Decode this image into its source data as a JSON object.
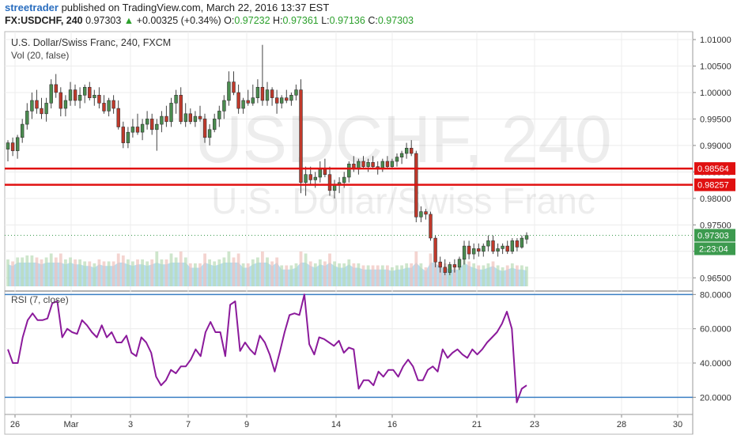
{
  "header": {
    "author": "streetrader",
    "published_text": "published on TradingView.com, March 22, 2016 13:37 EST",
    "symbol": "FX:USDCHF, 240",
    "last": "0.97303",
    "change_arrow": "▲",
    "change": "+0.00325 (+0.34%)",
    "o_label": "O:",
    "o_value": "0.97232",
    "h_label": "H:",
    "h_value": "0.97361",
    "l_label": "L:",
    "l_value": "0.97136",
    "c_label": "C:",
    "c_value": "0.97303"
  },
  "watermark": {
    "symbol": "USDCHF, 240",
    "name": "U.S. Dollar/Swiss Franc"
  },
  "colors": {
    "up": "#4a8c4f",
    "down": "#c0392b",
    "rsi": "#8b1a9b",
    "level": "#e01010",
    "rsi_band": "#3b7fc4",
    "last_price": "#3c9a4e"
  },
  "chart_data": [
    {
      "type": "candlestick",
      "title": "U.S. Dollar/Swiss Franc, 240, FXCM",
      "indicator_label": "Vol (20, false)",
      "ylim": [
        0.9625,
        1.0115
      ],
      "y_ticks": [
        "1.01000",
        "1.00500",
        "1.00000",
        "0.99500",
        "0.99000",
        "0.98500",
        "0.98000",
        "0.97500",
        "0.97000",
        "0.96500"
      ],
      "x_ticks": [
        "26",
        "Mar",
        "3",
        "7",
        "9",
        "14",
        "16",
        "21",
        "23",
        "28",
        "30"
      ],
      "levels": [
        {
          "value": 0.98564,
          "label": "0.98564"
        },
        {
          "value": 0.98257,
          "label": "0.98257"
        }
      ],
      "last_price": {
        "value": 0.97303,
        "label": "0.97303",
        "countdown": "2:23:04"
      },
      "candles": [
        {
          "o": 0.9893,
          "h": 0.991,
          "l": 0.987,
          "c": 0.9905
        },
        {
          "o": 0.9905,
          "h": 0.9915,
          "l": 0.988,
          "c": 0.989
        },
        {
          "o": 0.989,
          "h": 0.992,
          "l": 0.9875,
          "c": 0.9915
        },
        {
          "o": 0.9915,
          "h": 0.995,
          "l": 0.9905,
          "c": 0.994
        },
        {
          "o": 0.994,
          "h": 0.998,
          "l": 0.993,
          "c": 0.9965
        },
        {
          "o": 0.9965,
          "h": 1.0,
          "l": 0.995,
          "c": 0.9985
        },
        {
          "o": 0.9985,
          "h": 1.0005,
          "l": 0.996,
          "c": 0.997
        },
        {
          "o": 0.997,
          "h": 0.999,
          "l": 0.995,
          "c": 0.996
        },
        {
          "o": 0.996,
          "h": 0.999,
          "l": 0.9945,
          "c": 0.998
        },
        {
          "o": 0.998,
          "h": 1.0025,
          "l": 0.997,
          "c": 1.0015
        },
        {
          "o": 1.0015,
          "h": 1.0035,
          "l": 0.999,
          "c": 1.0
        },
        {
          "o": 1.0,
          "h": 1.001,
          "l": 0.9955,
          "c": 0.997
        },
        {
          "o": 0.997,
          "h": 0.9995,
          "l": 0.9955,
          "c": 0.9985
        },
        {
          "o": 0.9985,
          "h": 1.002,
          "l": 0.9975,
          "c": 1.0005
        },
        {
          "o": 1.0005,
          "h": 1.0015,
          "l": 0.9975,
          "c": 0.9985
        },
        {
          "o": 0.9985,
          "h": 1.001,
          "l": 0.997,
          "c": 0.9995
        },
        {
          "o": 0.9995,
          "h": 1.0015,
          "l": 0.998,
          "c": 1.001
        },
        {
          "o": 1.001,
          "h": 1.002,
          "l": 0.9985,
          "c": 0.999
        },
        {
          "o": 0.999,
          "h": 1.0005,
          "l": 0.9975,
          "c": 0.9995
        },
        {
          "o": 0.9995,
          "h": 1.001,
          "l": 0.997,
          "c": 0.998
        },
        {
          "o": 0.998,
          "h": 0.9995,
          "l": 0.996,
          "c": 0.9965
        },
        {
          "o": 0.9965,
          "h": 0.999,
          "l": 0.9955,
          "c": 0.9985
        },
        {
          "o": 0.9985,
          "h": 0.9995,
          "l": 0.996,
          "c": 0.997
        },
        {
          "o": 0.997,
          "h": 0.9985,
          "l": 0.993,
          "c": 0.9935
        },
        {
          "o": 0.9935,
          "h": 0.9945,
          "l": 0.9895,
          "c": 0.9905
        },
        {
          "o": 0.9905,
          "h": 0.9935,
          "l": 0.9895,
          "c": 0.9925
        },
        {
          "o": 0.9925,
          "h": 0.995,
          "l": 0.9915,
          "c": 0.9935
        },
        {
          "o": 0.9935,
          "h": 0.996,
          "l": 0.992,
          "c": 0.9925
        },
        {
          "o": 0.9925,
          "h": 0.995,
          "l": 0.991,
          "c": 0.994
        },
        {
          "o": 0.994,
          "h": 0.9965,
          "l": 0.993,
          "c": 0.995
        },
        {
          "o": 0.995,
          "h": 0.996,
          "l": 0.992,
          "c": 0.993
        },
        {
          "o": 0.993,
          "h": 0.995,
          "l": 0.989,
          "c": 0.994
        },
        {
          "o": 0.994,
          "h": 0.9965,
          "l": 0.9925,
          "c": 0.9955
        },
        {
          "o": 0.9955,
          "h": 0.9975,
          "l": 0.9935,
          "c": 0.9945
        },
        {
          "o": 0.9945,
          "h": 0.999,
          "l": 0.9935,
          "c": 0.998
        },
        {
          "o": 0.998,
          "h": 1.0005,
          "l": 0.996,
          "c": 0.9995
        },
        {
          "o": 0.9995,
          "h": 1.001,
          "l": 0.994,
          "c": 0.9945
        },
        {
          "o": 0.9945,
          "h": 0.998,
          "l": 0.9935,
          "c": 0.996
        },
        {
          "o": 0.996,
          "h": 0.997,
          "l": 0.994,
          "c": 0.9945
        },
        {
          "o": 0.9945,
          "h": 0.9965,
          "l": 0.9935,
          "c": 0.9955
        },
        {
          "o": 0.9955,
          "h": 0.9975,
          "l": 0.9945,
          "c": 0.995
        },
        {
          "o": 0.995,
          "h": 0.996,
          "l": 0.9905,
          "c": 0.9915
        },
        {
          "o": 0.9915,
          "h": 0.994,
          "l": 0.99,
          "c": 0.993
        },
        {
          "o": 0.993,
          "h": 0.996,
          "l": 0.9925,
          "c": 0.995
        },
        {
          "o": 0.995,
          "h": 0.9975,
          "l": 0.9935,
          "c": 0.9965
        },
        {
          "o": 0.9965,
          "h": 0.9995,
          "l": 0.995,
          "c": 0.9985
        },
        {
          "o": 0.9985,
          "h": 1.004,
          "l": 0.9975,
          "c": 1.002
        },
        {
          "o": 1.002,
          "h": 1.004,
          "l": 0.9995,
          "c": 1.0
        },
        {
          "o": 1.0,
          "h": 1.0015,
          "l": 0.996,
          "c": 0.997
        },
        {
          "o": 0.997,
          "h": 0.999,
          "l": 0.996,
          "c": 0.9985
        },
        {
          "o": 0.9985,
          "h": 1.0005,
          "l": 0.9975,
          "c": 0.998
        },
        {
          "o": 0.998,
          "h": 1.0015,
          "l": 0.9975,
          "c": 0.999
        },
        {
          "o": 0.999,
          "h": 1.0025,
          "l": 0.998,
          "c": 1.001
        },
        {
          "o": 1.001,
          "h": 1.009,
          "l": 0.9975,
          "c": 0.9985
        },
        {
          "o": 0.9985,
          "h": 1.002,
          "l": 0.9975,
          "c": 1.0005
        },
        {
          "o": 1.0005,
          "h": 1.001,
          "l": 0.9975,
          "c": 0.999
        },
        {
          "o": 0.999,
          "h": 1.0005,
          "l": 0.996,
          "c": 0.998
        },
        {
          "o": 0.998,
          "h": 0.9995,
          "l": 0.997,
          "c": 0.999
        },
        {
          "o": 0.999,
          "h": 1.0005,
          "l": 0.998,
          "c": 0.9985
        },
        {
          "o": 0.9985,
          "h": 1.0,
          "l": 0.9975,
          "c": 0.9995
        },
        {
          "o": 0.9995,
          "h": 1.0015,
          "l": 0.9985,
          "c": 1.0005
        },
        {
          "o": 1.0005,
          "h": 1.0025,
          "l": 0.981,
          "c": 0.983
        },
        {
          "o": 0.983,
          "h": 0.986,
          "l": 0.9805,
          "c": 0.9845
        },
        {
          "o": 0.9845,
          "h": 0.986,
          "l": 0.9825,
          "c": 0.9835
        },
        {
          "o": 0.9835,
          "h": 0.985,
          "l": 0.982,
          "c": 0.984
        },
        {
          "o": 0.984,
          "h": 0.987,
          "l": 0.983,
          "c": 0.9855
        },
        {
          "o": 0.9855,
          "h": 0.9875,
          "l": 0.984,
          "c": 0.9845
        },
        {
          "o": 0.9845,
          "h": 0.986,
          "l": 0.9805,
          "c": 0.9815
        },
        {
          "o": 0.9815,
          "h": 0.9835,
          "l": 0.98,
          "c": 0.9825
        },
        {
          "o": 0.9825,
          "h": 0.984,
          "l": 0.981,
          "c": 0.983
        },
        {
          "o": 0.983,
          "h": 0.985,
          "l": 0.982,
          "c": 0.984
        },
        {
          "o": 0.984,
          "h": 0.987,
          "l": 0.983,
          "c": 0.9865
        },
        {
          "o": 0.9865,
          "h": 0.988,
          "l": 0.985,
          "c": 0.9855
        },
        {
          "o": 0.9855,
          "h": 0.9875,
          "l": 0.9845,
          "c": 0.987
        },
        {
          "o": 0.987,
          "h": 0.988,
          "l": 0.9855,
          "c": 0.986
        },
        {
          "o": 0.986,
          "h": 0.9875,
          "l": 0.985,
          "c": 0.9868
        },
        {
          "o": 0.9868,
          "h": 0.988,
          "l": 0.9855,
          "c": 0.986
        },
        {
          "o": 0.986,
          "h": 0.987,
          "l": 0.9845,
          "c": 0.9855
        },
        {
          "o": 0.9855,
          "h": 0.9875,
          "l": 0.985,
          "c": 0.987
        },
        {
          "o": 0.987,
          "h": 0.988,
          "l": 0.9855,
          "c": 0.986
        },
        {
          "o": 0.986,
          "h": 0.9875,
          "l": 0.9855,
          "c": 0.987
        },
        {
          "o": 0.987,
          "h": 0.9885,
          "l": 0.986,
          "c": 0.9878
        },
        {
          "o": 0.9878,
          "h": 0.989,
          "l": 0.9865,
          "c": 0.9885
        },
        {
          "o": 0.9885,
          "h": 0.9905,
          "l": 0.9875,
          "c": 0.9895
        },
        {
          "o": 0.9895,
          "h": 0.991,
          "l": 0.988,
          "c": 0.9885
        },
        {
          "o": 0.9885,
          "h": 0.989,
          "l": 0.9755,
          "c": 0.9765
        },
        {
          "o": 0.9765,
          "h": 0.9785,
          "l": 0.9755,
          "c": 0.9775
        },
        {
          "o": 0.9775,
          "h": 0.978,
          "l": 0.976,
          "c": 0.977
        },
        {
          "o": 0.977,
          "h": 0.9775,
          "l": 0.972,
          "c": 0.9725
        },
        {
          "o": 0.9725,
          "h": 0.973,
          "l": 0.967,
          "c": 0.968
        },
        {
          "o": 0.968,
          "h": 0.969,
          "l": 0.966,
          "c": 0.967
        },
        {
          "o": 0.967,
          "h": 0.9685,
          "l": 0.9655,
          "c": 0.966
        },
        {
          "o": 0.966,
          "h": 0.968,
          "l": 0.9655,
          "c": 0.9675
        },
        {
          "o": 0.9675,
          "h": 0.9685,
          "l": 0.966,
          "c": 0.967
        },
        {
          "o": 0.967,
          "h": 0.969,
          "l": 0.9665,
          "c": 0.9685
        },
        {
          "o": 0.9685,
          "h": 0.972,
          "l": 0.9675,
          "c": 0.971
        },
        {
          "o": 0.971,
          "h": 0.972,
          "l": 0.9685,
          "c": 0.9695
        },
        {
          "o": 0.9695,
          "h": 0.9715,
          "l": 0.9685,
          "c": 0.9705
        },
        {
          "o": 0.9705,
          "h": 0.9715,
          "l": 0.969,
          "c": 0.97
        },
        {
          "o": 0.97,
          "h": 0.9715,
          "l": 0.969,
          "c": 0.971
        },
        {
          "o": 0.971,
          "h": 0.973,
          "l": 0.97,
          "c": 0.972
        },
        {
          "o": 0.972,
          "h": 0.973,
          "l": 0.9695,
          "c": 0.97
        },
        {
          "o": 0.97,
          "h": 0.9715,
          "l": 0.969,
          "c": 0.9705
        },
        {
          "o": 0.9705,
          "h": 0.9715,
          "l": 0.9695,
          "c": 0.971
        },
        {
          "o": 0.971,
          "h": 0.972,
          "l": 0.9695,
          "c": 0.97
        },
        {
          "o": 0.97,
          "h": 0.9725,
          "l": 0.9695,
          "c": 0.972
        },
        {
          "o": 0.972,
          "h": 0.9725,
          "l": 0.97,
          "c": 0.9708
        },
        {
          "o": 0.9708,
          "h": 0.973,
          "l": 0.9705,
          "c": 0.9725
        },
        {
          "o": 0.9723,
          "h": 0.9736,
          "l": 0.9714,
          "c": 0.973
        }
      ]
    },
    {
      "type": "line",
      "title": "RSI (7, close)",
      "ylim": [
        10,
        82
      ],
      "y_ticks": [
        "80.0000",
        "60.0000",
        "40.0000",
        "20.0000"
      ],
      "bands": [
        80,
        20
      ],
      "series": [
        {
          "values": [
            48,
            40,
            40,
            55,
            65,
            69,
            65,
            65,
            66,
            75,
            76,
            55,
            60,
            58,
            57,
            65,
            62,
            58,
            55,
            62,
            55,
            58,
            52,
            52,
            56,
            46,
            44,
            55,
            52,
            46,
            32,
            27,
            30,
            36,
            34,
            38,
            38,
            42,
            48,
            44,
            58,
            64,
            58,
            58,
            44,
            74,
            76,
            47,
            52,
            48,
            45,
            56,
            52,
            45,
            35,
            46,
            58,
            68,
            69,
            68,
            80,
            51,
            45,
            55,
            54,
            52,
            50,
            53,
            46,
            49,
            48,
            25,
            30,
            30,
            27,
            35,
            32,
            36,
            36,
            32,
            38,
            42,
            38,
            30,
            30,
            36,
            38,
            35,
            48,
            43,
            46,
            48,
            45,
            43,
            48,
            45,
            48,
            52,
            55,
            58,
            63,
            70,
            60,
            17,
            25,
            27
          ]
        }
      ]
    }
  ]
}
